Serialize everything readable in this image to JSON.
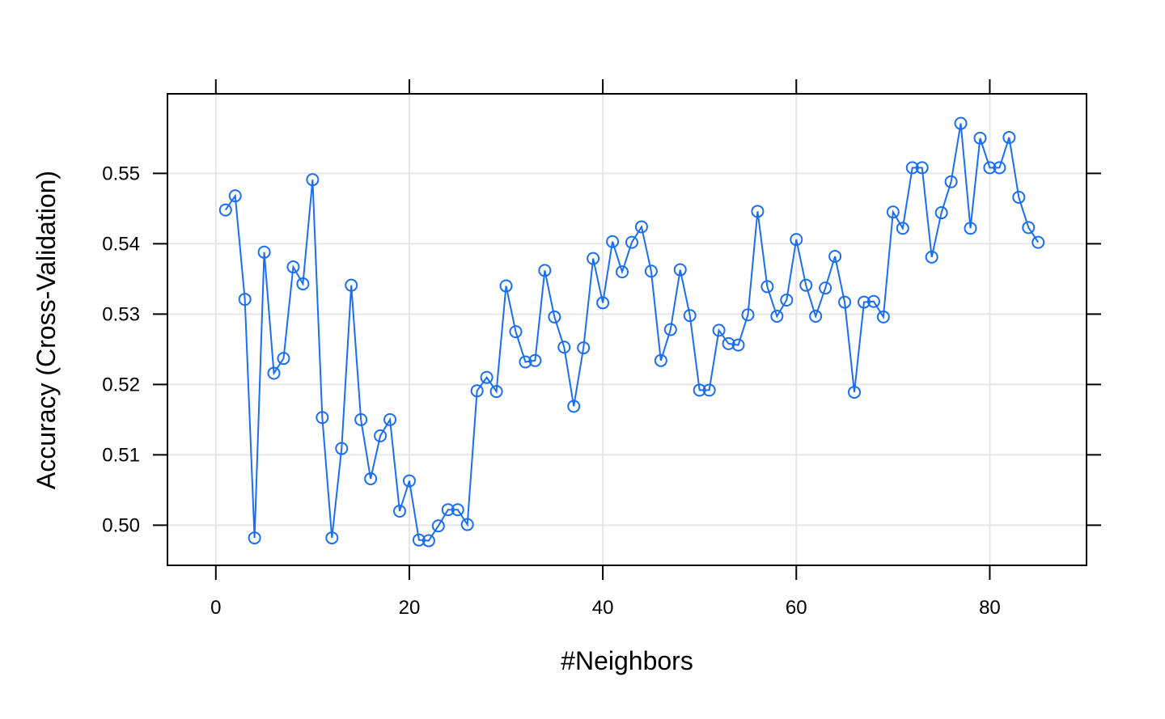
{
  "chart_data": {
    "type": "line",
    "title": "",
    "xlabel": "#Neighbors",
    "ylabel": "Accuracy (Cross-Validation)",
    "xlim": [
      -5,
      90
    ],
    "ylim": [
      0.4943,
      0.5613
    ],
    "x_ticks": [
      0,
      20,
      40,
      60,
      80
    ],
    "x_tick_labels": [
      "0",
      "20",
      "40",
      "60",
      "80"
    ],
    "y_ticks": [
      0.5,
      0.51,
      0.52,
      0.53,
      0.54,
      0.55
    ],
    "y_tick_labels": [
      "0.50",
      "0.51",
      "0.52",
      "0.53",
      "0.54",
      "0.55"
    ],
    "grid": true,
    "legend": "none",
    "series_color": "#1a6ef5",
    "series": [
      {
        "x": [
          1,
          2,
          3,
          4,
          5,
          6,
          7,
          8,
          9,
          10,
          11,
          12,
          13,
          14,
          15,
          16,
          17,
          18,
          19,
          20,
          21,
          22,
          23,
          24,
          25,
          26,
          27,
          28,
          29,
          30,
          31,
          32,
          33,
          34,
          35,
          36,
          37,
          38,
          39,
          40,
          41,
          42,
          43,
          44,
          45,
          46,
          47,
          48,
          49,
          50,
          51,
          52,
          53,
          54,
          55,
          56,
          57,
          58,
          59,
          60,
          61,
          62,
          63,
          64,
          65,
          66,
          67,
          68,
          69,
          70,
          71,
          72,
          73,
          74,
          75,
          76,
          77,
          78,
          79,
          80,
          81,
          82,
          83,
          84,
          85
        ],
        "values": [
          0.5448,
          0.5468,
          0.5321,
          0.4982,
          0.5388,
          0.5216,
          0.5237,
          0.5367,
          0.5343,
          0.5491,
          0.5153,
          0.4982,
          0.5109,
          0.5341,
          0.515,
          0.5066,
          0.5127,
          0.515,
          0.502,
          0.5063,
          0.4979,
          0.4978,
          0.4999,
          0.5022,
          0.5022,
          0.5001,
          0.5191,
          0.521,
          0.519,
          0.534,
          0.5275,
          0.5232,
          0.5234,
          0.5362,
          0.5296,
          0.5253,
          0.5169,
          0.5252,
          0.5379,
          0.5316,
          0.5403,
          0.536,
          0.5402,
          0.5424,
          0.5361,
          0.5234,
          0.5278,
          0.5363,
          0.5298,
          0.5192,
          0.5192,
          0.5277,
          0.5258,
          0.5256,
          0.5299,
          0.5446,
          0.5339,
          0.5297,
          0.532,
          0.5406,
          0.5341,
          0.5297,
          0.5337,
          0.5382,
          0.5317,
          0.5189,
          0.5317,
          0.5318,
          0.5296,
          0.5445,
          0.5422,
          0.5508,
          0.5508,
          0.5381,
          0.5444,
          0.5488,
          0.5571,
          0.5422,
          0.555,
          0.5508,
          0.5508,
          0.5551,
          0.5466,
          0.5423,
          0.5402
        ]
      }
    ]
  }
}
